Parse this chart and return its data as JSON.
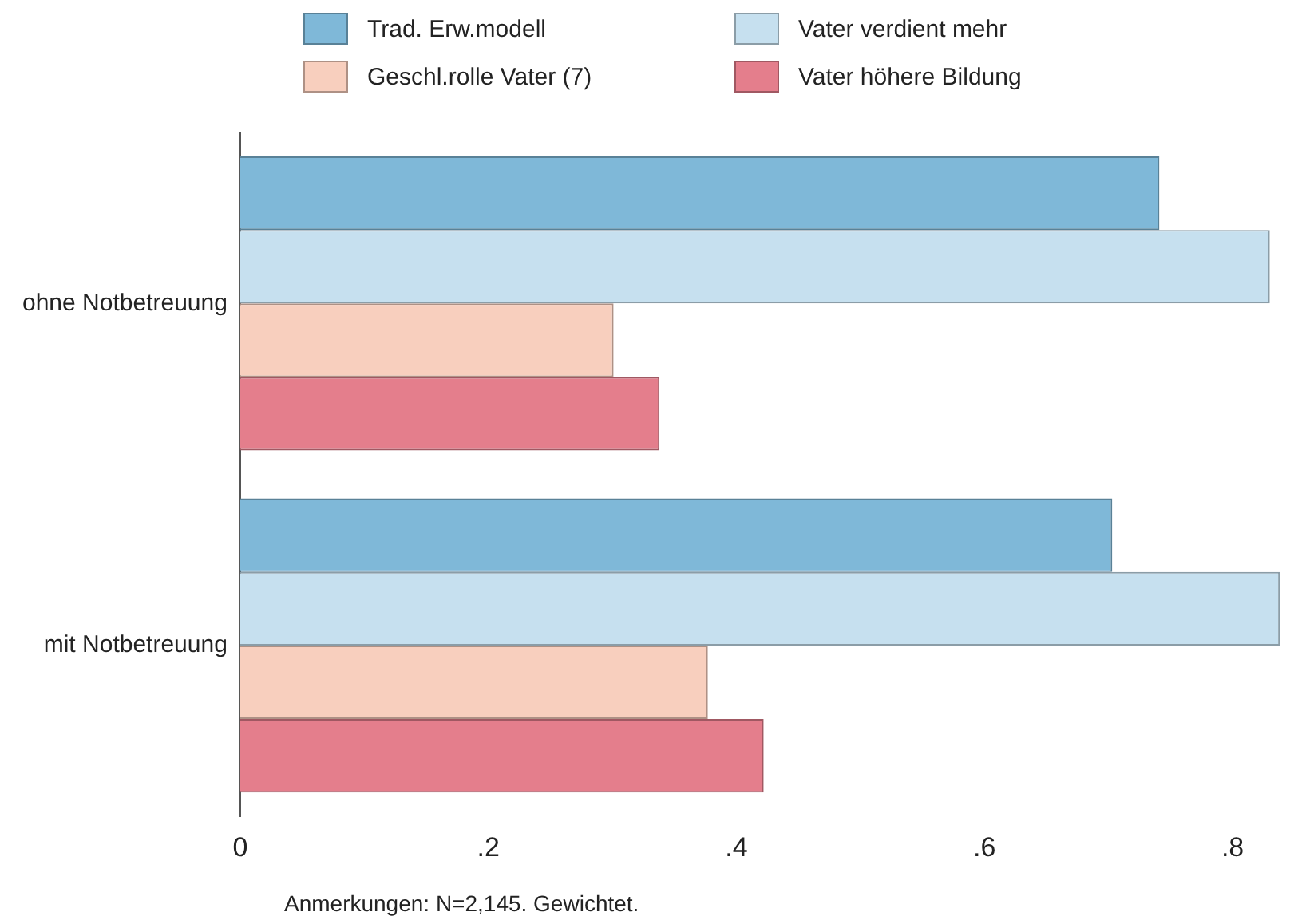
{
  "chart_data": {
    "type": "bar",
    "orientation": "horizontal",
    "categories": [
      "ohne Notbetreuung",
      "mit Notbetreuung"
    ],
    "series": [
      {
        "name": "Trad. Erw.modell",
        "color": "#7fb8d8",
        "values": [
          0.741,
          0.703
        ]
      },
      {
        "name": "Vater verdient mehr",
        "color": "#c6e0ef",
        "values": [
          0.83,
          0.838
        ]
      },
      {
        "name": "Geschl.rolle Vater (7)",
        "color": "#f8cfbe",
        "values": [
          0.301,
          0.377
        ]
      },
      {
        "name": "Vater höhere Bildung",
        "color": "#e47e8c",
        "values": [
          0.338,
          0.422
        ]
      }
    ],
    "xlim": [
      0,
      0.845
    ],
    "xticks": [
      0,
      {
        "value": 0.2,
        "label": ".2"
      },
      {
        "value": 0.4,
        "label": ".4"
      },
      {
        "value": 0.6,
        "label": ".6"
      },
      {
        "value": 0.8,
        "label": ".8"
      }
    ],
    "grid": false,
    "legend": "top",
    "annotations": [
      "Anmerkungen: N=2,145. Gewichtet."
    ]
  }
}
